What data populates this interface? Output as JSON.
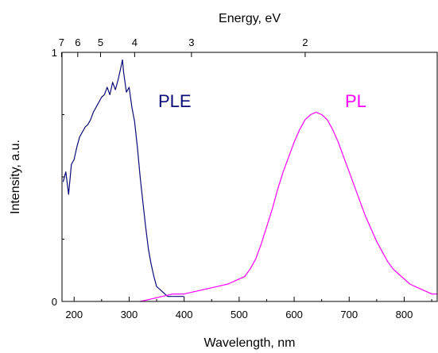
{
  "chart_data": {
    "type": "line",
    "title": "",
    "xlabel": "Wavelength, nm",
    "ylabel": "Intensity, a.u.",
    "top_xlabel": "Energy, eV",
    "xlim": [
      178,
      860
    ],
    "ylim": [
      0,
      1
    ],
    "x_ticks": [
      200,
      300,
      400,
      500,
      600,
      700,
      800
    ],
    "y_ticks": [
      0,
      1
    ],
    "top_ticks": [
      {
        "label": "7",
        "energy_eV": 7
      },
      {
        "label": "6",
        "energy_eV": 6
      },
      {
        "label": "5",
        "energy_eV": 5
      },
      {
        "label": "4",
        "energy_eV": 4
      },
      {
        "label": "3",
        "energy_eV": 3
      },
      {
        "label": "2",
        "energy_eV": 2
      }
    ],
    "grid": false,
    "legend": "none",
    "annotations": [
      {
        "text": "PLE",
        "color": "#0b0b7a"
      },
      {
        "text": "PL",
        "color": "#ff00ff"
      }
    ],
    "series": [
      {
        "color": "#0b0b7a",
        "x": [
          180,
          185,
          190,
          195,
          200,
          205,
          210,
          215,
          220,
          225,
          230,
          235,
          240,
          245,
          250,
          255,
          260,
          265,
          270,
          275,
          280,
          285,
          288,
          290,
          295,
          300,
          305,
          310,
          315,
          320,
          325,
          330,
          335,
          340,
          345,
          350,
          355,
          360,
          365,
          370,
          380,
          390,
          400
        ],
        "y": [
          0.48,
          0.52,
          0.43,
          0.55,
          0.57,
          0.62,
          0.66,
          0.68,
          0.7,
          0.71,
          0.73,
          0.76,
          0.78,
          0.8,
          0.82,
          0.83,
          0.86,
          0.83,
          0.88,
          0.85,
          0.89,
          0.94,
          0.97,
          0.92,
          0.84,
          0.86,
          0.78,
          0.72,
          0.62,
          0.5,
          0.4,
          0.3,
          0.21,
          0.15,
          0.1,
          0.06,
          0.05,
          0.04,
          0.03,
          0.02,
          0.02,
          0.02,
          0.02
        ]
      },
      {
        "color": "#ff00ff",
        "x": [
          320,
          340,
          360,
          380,
          400,
          420,
          440,
          460,
          480,
          500,
          510,
          520,
          530,
          540,
          550,
          560,
          570,
          580,
          590,
          600,
          610,
          620,
          630,
          640,
          650,
          660,
          670,
          680,
          690,
          700,
          710,
          720,
          730,
          740,
          750,
          760,
          770,
          780,
          790,
          800,
          810,
          820,
          830,
          840,
          850,
          860
        ],
        "y": [
          0.0,
          0.01,
          0.02,
          0.03,
          0.03,
          0.04,
          0.05,
          0.06,
          0.07,
          0.09,
          0.1,
          0.13,
          0.17,
          0.23,
          0.3,
          0.37,
          0.45,
          0.52,
          0.58,
          0.64,
          0.69,
          0.73,
          0.75,
          0.76,
          0.75,
          0.73,
          0.69,
          0.64,
          0.58,
          0.52,
          0.46,
          0.4,
          0.34,
          0.29,
          0.24,
          0.2,
          0.16,
          0.13,
          0.11,
          0.09,
          0.07,
          0.06,
          0.05,
          0.04,
          0.03,
          0.03
        ]
      }
    ]
  }
}
